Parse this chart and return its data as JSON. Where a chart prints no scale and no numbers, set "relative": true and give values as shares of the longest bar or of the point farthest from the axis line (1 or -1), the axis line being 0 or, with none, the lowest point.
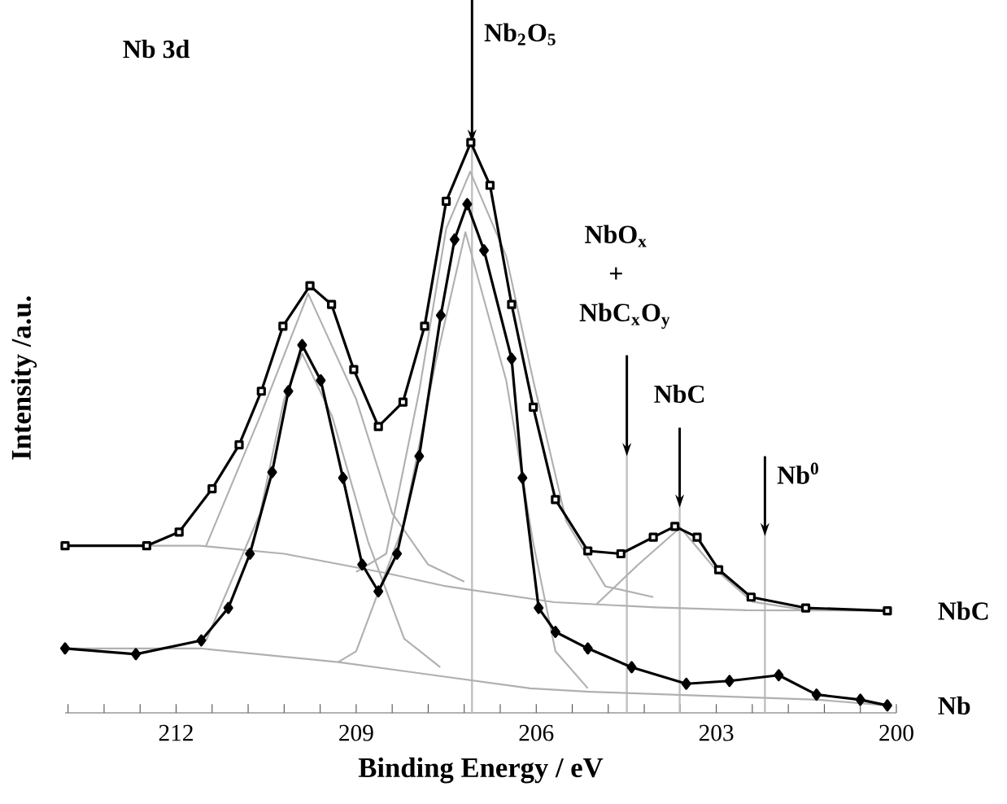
{
  "chart_data": {
    "type": "line",
    "relative": true,
    "xlabel": "Binding Energy / eV",
    "ylabel": "Intensity /a.u.",
    "annotations": [
      "Nb 3d"
    ],
    "xlim": [
      213.85,
      200
    ],
    "xticks": [
      {
        "value": 213.8,
        "label": null
      },
      {
        "value": 213.2,
        "label": null
      },
      {
        "value": 212.6,
        "label": null
      },
      212,
      {
        "value": 211.4,
        "label": null
      },
      {
        "value": 210.8,
        "label": null
      },
      {
        "value": 210.2,
        "label": null
      },
      {
        "value": 209.6,
        "label": null
      },
      209,
      {
        "value": 208.4,
        "label": null
      },
      {
        "value": 207.8,
        "label": null
      },
      {
        "value": 207.2,
        "label": null
      },
      {
        "value": 206.6,
        "label": null
      },
      206,
      {
        "value": 205.4,
        "label": null
      },
      {
        "value": 204.8,
        "label": null
      },
      {
        "value": 204.2,
        "label": null
      },
      {
        "value": 203.6,
        "label": null
      },
      203,
      {
        "value": 202.4,
        "label": null
      },
      {
        "value": 201.8,
        "label": null
      },
      {
        "value": 201.2,
        "label": null
      },
      {
        "value": 200.6,
        "label": null
      },
      200
    ],
    "tick_labels": "x",
    "ref_lines": [
      {
        "axis": "x",
        "value": 207.07,
        "label": "Nb$_{2}$O$_{5}$",
        "color": "#c0c0c0"
      },
      {
        "axis": "x",
        "value": 204.49,
        "label": "NbO$_{x}$ + NbC$_{x}$O$_{y}$",
        "color": "#c0c0c0"
      },
      {
        "axis": "x",
        "value": 203.61,
        "label": "NbC",
        "color": "#c0c0c0"
      },
      {
        "axis": "x",
        "value": 202.19,
        "label": "Nb$^{0}$",
        "color": "#c0c0c0"
      }
    ],
    "series": [
      {
        "type": "line",
        "color": "#b0b0b0",
        "marker": "none",
        "x": [
          213.85,
          211.6,
          210.2,
          208.5,
          207.5,
          205.7,
          204.0,
          202.5,
          200.15
        ],
        "values": [
          0.293,
          0.293,
          0.279,
          0.245,
          0.222,
          0.194,
          0.185,
          0.18,
          0.179
        ]
      },
      {
        "type": "line",
        "color": "#b0b0b0",
        "marker": "none",
        "x": [
          213.85,
          211.6,
          209.3,
          206.1,
          205.1,
          201.3,
          200.15
        ],
        "values": [
          0.113,
          0.113,
          0.089,
          0.043,
          0.037,
          0.023,
          0.013
        ]
      },
      {
        "type": "line",
        "color": "#b0b0b0",
        "marker": "none",
        "x": [
          209.0,
          208.5,
          207.95,
          207.5,
          207.1,
          206.5,
          206.05,
          205.5,
          204.85,
          204.05
        ],
        "values": [
          0.247,
          0.279,
          0.564,
          0.849,
          0.949,
          0.801,
          0.583,
          0.336,
          0.222,
          0.203
        ]
      },
      {
        "type": "line",
        "color": "#b0b0b0",
        "marker": "none",
        "x": [
          209.3,
          209.0,
          208.22,
          207.68,
          207.18,
          206.5,
          206.05,
          205.68,
          205.14
        ],
        "values": [
          0.089,
          0.108,
          0.327,
          0.612,
          0.843,
          0.583,
          0.298,
          0.108,
          0.043
        ]
      },
      {
        "type": "line",
        "color": "#b0b0b0",
        "marker": "none",
        "x": [
          211.5,
          210.6,
          209.8,
          209.0,
          208.4,
          207.8,
          207.2
        ],
        "values": [
          0.293,
          0.52,
          0.735,
          0.55,
          0.35,
          0.26,
          0.23
        ]
      },
      {
        "type": "line",
        "color": "#b0b0b0",
        "marker": "none",
        "x": [
          211.5,
          210.6,
          210.2,
          209.9,
          209.4,
          208.8,
          208.2,
          207.6
        ],
        "values": [
          0.127,
          0.35,
          0.55,
          0.63,
          0.52,
          0.3,
          0.13,
          0.08
        ]
      },
      {
        "type": "line",
        "color": "#b0b0b0",
        "marker": "none",
        "x": [
          205.0,
          204.3,
          203.6,
          203.0,
          202.4,
          201.5
        ],
        "values": [
          0.19,
          0.26,
          0.325,
          0.25,
          0.195,
          0.18
        ]
      },
      {
        "name": "NbC",
        "type": "line",
        "color": "#000000",
        "marker": "square",
        "x": [
          213.85,
          212.49,
          211.95,
          211.4,
          210.95,
          210.58,
          210.22,
          209.77,
          209.41,
          209.04,
          208.63,
          208.22,
          207.86,
          207.5,
          207.09,
          206.77,
          206.41,
          206.05,
          205.68,
          205.14,
          204.59,
          204.05,
          203.69,
          203.32,
          202.96,
          202.42,
          201.51,
          200.15
        ],
        "values": [
          0.293,
          0.293,
          0.317,
          0.393,
          0.47,
          0.564,
          0.678,
          0.749,
          0.716,
          0.602,
          0.502,
          0.545,
          0.678,
          0.897,
          1.0,
          0.925,
          0.716,
          0.536,
          0.374,
          0.284,
          0.279,
          0.308,
          0.327,
          0.308,
          0.251,
          0.203,
          0.184,
          0.179
        ]
      },
      {
        "name": "Nb",
        "type": "line",
        "color": "#000000",
        "marker": "diamond",
        "x": [
          213.85,
          212.67,
          211.58,
          211.13,
          210.77,
          210.4,
          210.13,
          209.9,
          209.59,
          209.22,
          208.9,
          208.63,
          208.32,
          207.95,
          207.59,
          207.36,
          207.15,
          206.87,
          206.41,
          206.23,
          205.96,
          205.68,
          205.14,
          204.41,
          203.5,
          202.78,
          201.96,
          201.33,
          200.6,
          200.15
        ],
        "values": [
          0.113,
          0.103,
          0.127,
          0.184,
          0.279,
          0.422,
          0.564,
          0.645,
          0.583,
          0.412,
          0.26,
          0.213,
          0.279,
          0.45,
          0.697,
          0.83,
          0.892,
          0.811,
          0.621,
          0.412,
          0.184,
          0.142,
          0.113,
          0.08,
          0.051,
          0.056,
          0.066,
          0.032,
          0.023,
          0.013
        ]
      }
    ]
  }
}
